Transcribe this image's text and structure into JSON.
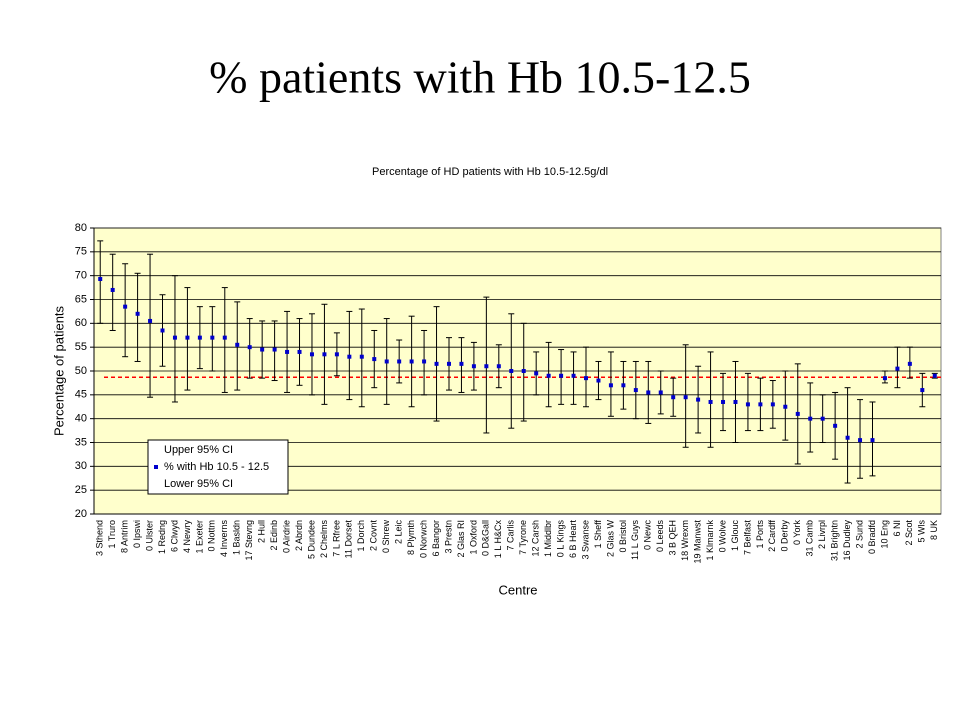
{
  "page_title": "% patients with Hb 10.5-12.5",
  "chart_data": {
    "type": "errorbar",
    "title": "Percentage of HD patients with Hb 10.5-12.5g/dl",
    "x_label": "Centre",
    "y_label": "Percentage of patients",
    "categories": [
      "3 Sthend",
      "1 Truro",
      "8 Antrim",
      "0 Ipswi",
      "0 Ulster",
      "1 Redng",
      "6 Clwyd",
      "4 Newry",
      "1 Exeter",
      "0 Nottm",
      "4 Inverns",
      "1 Basldn",
      "17 Stevng",
      "2 Hull",
      "2 Edinb",
      "0 Airdrie",
      "2 Abrdn",
      "5 Dundee",
      "2 Chelms",
      "7 L Rfree",
      "11 Dorset",
      "1 Dorch",
      "2 Covnt",
      "0 Shrew",
      "2 Leic",
      "8 Plymth",
      "0 Norwch",
      "6 Bangor",
      "3 Prestn",
      "2 Glas RI",
      "1 Oxford",
      "0 D&Gall",
      "1 L H&Cx",
      "7 Carlis",
      "7 Tyrone",
      "12 Carsh",
      "1 Middlbr",
      "0 L Kings",
      "6 B Heart",
      "3 Swanse",
      "1 Sheff",
      "2 Glas W",
      "0 Bristol",
      "11 L Guys",
      "0 Newc",
      "0 Leeds",
      "3 B QEH",
      "18 Wrexm",
      "19 Manwst",
      "1 Klmarnk",
      "0 Wolve",
      "1 Glouc",
      "7 Belfast",
      "1 Ports",
      "2 Cardff",
      "0 Derby",
      "0 York",
      "31 Camb",
      "2 Livrpl",
      "31 Brightn",
      "16 Dudley",
      "2 Sund",
      "0 Bradfd",
      "10 Eng",
      "6 NI",
      "2 Scot",
      "5 Wls",
      "8 UK"
    ],
    "series": [
      {
        "name": "Upper 95% CI",
        "color": "#000000",
        "values": [
          77.3,
          74.5,
          72.5,
          70.5,
          74.5,
          66,
          70,
          67.5,
          63.5,
          63.5,
          67.5,
          64.5,
          61,
          60.5,
          60.5,
          62.5,
          61,
          62,
          64,
          58,
          62.5,
          63,
          58.5,
          61,
          56.5,
          61.5,
          58.5,
          63.5,
          57,
          57,
          56,
          65.5,
          55.5,
          62,
          60,
          54,
          56,
          54.5,
          54,
          55,
          52,
          54,
          52,
          52,
          52,
          50,
          48.5,
          55.5,
          51,
          54,
          49.5,
          52,
          49.5,
          48.5,
          48,
          50,
          51.5,
          47.5,
          45,
          45.5,
          46.5,
          44,
          43.5,
          50,
          55,
          55,
          49.5,
          49.5
        ]
      },
      {
        "name": "% with Hb 10.5 - 12.5",
        "color": "#0000cc",
        "values": [
          69.3,
          67,
          63.5,
          62,
          60.5,
          58.5,
          57,
          57,
          57,
          57,
          57,
          55.5,
          55,
          54.5,
          54.5,
          54,
          54,
          53.5,
          53.5,
          53.5,
          53,
          53,
          52.5,
          52,
          52,
          52,
          52,
          51.5,
          51.5,
          51.5,
          51,
          51,
          51,
          50,
          50,
          49.5,
          49,
          49,
          49,
          48.5,
          48,
          47,
          47,
          46,
          45.5,
          45.5,
          44.5,
          44.5,
          44,
          43.5,
          43.5,
          43.5,
          43,
          43,
          43,
          42.5,
          41,
          40,
          40,
          38.5,
          36,
          35.5,
          35.5,
          48.5,
          50.5,
          51.5,
          46,
          49
        ]
      },
      {
        "name": "Lower 95% CI",
        "color": "#000000",
        "values": [
          60,
          58.5,
          53,
          52,
          44.5,
          51,
          43.5,
          46,
          50.5,
          50,
          45.5,
          46,
          48.5,
          48.5,
          48,
          45.5,
          47,
          45,
          43,
          49,
          44,
          42.5,
          46.5,
          43,
          47.5,
          42.5,
          45,
          39.5,
          46,
          45.5,
          46,
          37,
          46.5,
          38,
          39.5,
          45,
          42.5,
          43,
          43,
          42.5,
          44,
          40.5,
          42,
          40,
          39,
          41,
          40.5,
          34,
          37,
          34,
          37.5,
          35,
          37.5,
          37.5,
          38,
          35.5,
          30.5,
          33,
          35,
          31.5,
          26.5,
          27.5,
          28,
          47.5,
          46.5,
          48.5,
          42.5,
          48.5
        ]
      }
    ],
    "reference_line": {
      "value": 48.7,
      "color": "#ff0000"
    },
    "ylim": [
      20,
      80
    ],
    "yticks": [
      20,
      25,
      30,
      35,
      40,
      45,
      50,
      55,
      60,
      65,
      70,
      75,
      80
    ],
    "grid": true,
    "plot_background": "#ffffcc",
    "legend": "lower-left"
  }
}
